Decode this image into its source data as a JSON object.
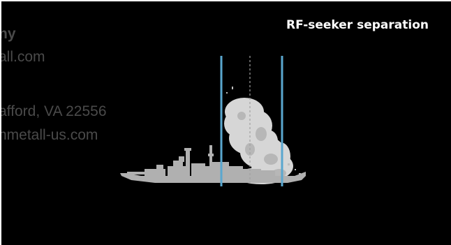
{
  "title": "RF-seeker separation",
  "background_text": {
    "company": "ny",
    "email": "all.com",
    "address": "afford, VA 22556",
    "website": "nmetall-us.com"
  },
  "colors": {
    "background": "#000000",
    "seeker_line": "#5aa7cf",
    "ship": "#b4b4b4",
    "smoke": "#d8d8d8",
    "center_line": "#a0a0a0",
    "ghost_text": "#4a4a4a",
    "title": "#ffffff"
  }
}
